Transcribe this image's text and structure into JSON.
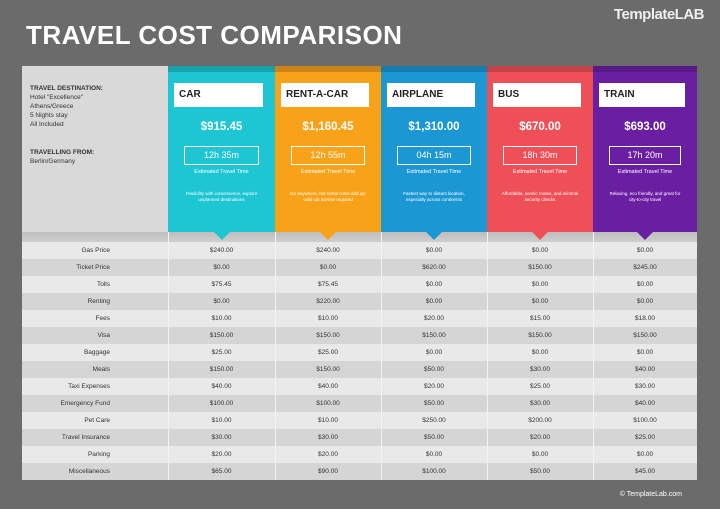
{
  "header": {
    "title": "TRAVEL COST COMPARISON",
    "logo": "TemplateLAB"
  },
  "trip": {
    "destination_label": "TRAVEL DESTINATION:",
    "destination_lines": [
      "Hotel \"Excellence\"",
      "Athens/Greece",
      "5 Nights stay",
      "All Included"
    ],
    "origin_label": "TRAVELLING FROM:",
    "origin": "Berlin/Germany"
  },
  "options": [
    {
      "name": "CAR",
      "total": "$915.45",
      "time": "12h 35m",
      "time_label": "Estimated Travel Time",
      "description": "Flexibility with convenience, explore unplanned destinations"
    },
    {
      "name": "RENT-A-CAR",
      "total": "$1,160.45",
      "time": "12h 55m",
      "time_label": "Estimated Travel Time",
      "description": "Go anywhere, but rental costs add up; valid car license required"
    },
    {
      "name": "AIRPLANE",
      "total": "$1,310.00",
      "time": "04h 15m",
      "time_label": "Estimated Travel Time",
      "description": "Fastest way to distant location, especially across continents"
    },
    {
      "name": "BUS",
      "total": "$670.00",
      "time": "18h 30m",
      "time_label": "Estimated Travel Time",
      "description": "Affordable, scenic routes, and minimal security checks"
    },
    {
      "name": "TRAIN",
      "total": "$693.00",
      "time": "17h 20m",
      "time_label": "Estimated Travel Time",
      "description": "Relaxing, eco friendly, and great for city-to-city travel"
    }
  ],
  "table": {
    "rows": [
      {
        "label": "Gas Price",
        "values": [
          "$240.00",
          "$240.00",
          "$0.00",
          "$0.00",
          "$0.00"
        ]
      },
      {
        "label": "Ticket Price",
        "values": [
          "$0.00",
          "$0.00",
          "$620.00",
          "$150.00",
          "$245.00"
        ]
      },
      {
        "label": "Tolls",
        "values": [
          "$75.45",
          "$75.45",
          "$0.00",
          "$0.00",
          "$0.00"
        ]
      },
      {
        "label": "Renting",
        "values": [
          "$0.00",
          "$220.00",
          "$0.00",
          "$0.00",
          "$0.00"
        ]
      },
      {
        "label": "Fees",
        "values": [
          "$10.00",
          "$10.00",
          "$20.00",
          "$15.00",
          "$18.00"
        ]
      },
      {
        "label": "Visa",
        "values": [
          "$150.00",
          "$150.00",
          "$150.00",
          "$150.00",
          "$150.00"
        ]
      },
      {
        "label": "Baggage",
        "values": [
          "$25.00",
          "$25.00",
          "$0.00",
          "$0.00",
          "$0.00"
        ]
      },
      {
        "label": "Meals",
        "values": [
          "$150.00",
          "$150.00",
          "$50.00",
          "$30.00",
          "$40.00"
        ]
      },
      {
        "label": "Taxi Expenses",
        "values": [
          "$40.00",
          "$40.00",
          "$20.00",
          "$25.00",
          "$30.00"
        ]
      },
      {
        "label": "Emergency Fund",
        "values": [
          "$100.00",
          "$100.00",
          "$50.00",
          "$30.00",
          "$40.00"
        ]
      },
      {
        "label": "Pet Care",
        "values": [
          "$10.00",
          "$10.00",
          "$250.00",
          "$200.00",
          "$100.00"
        ]
      },
      {
        "label": "Travel Insurance",
        "values": [
          "$30.00",
          "$30.00",
          "$50.00",
          "$20.00",
          "$25.00"
        ]
      },
      {
        "label": "Parking",
        "values": [
          "$20.00",
          "$20.00",
          "$0.00",
          "$0.00",
          "$0.00"
        ]
      },
      {
        "label": "Miscellaneous",
        "values": [
          "$65.00",
          "$90.00",
          "$100.00",
          "$50.00",
          "$45.00"
        ]
      }
    ]
  },
  "footer": "© TemplateLab.com"
}
